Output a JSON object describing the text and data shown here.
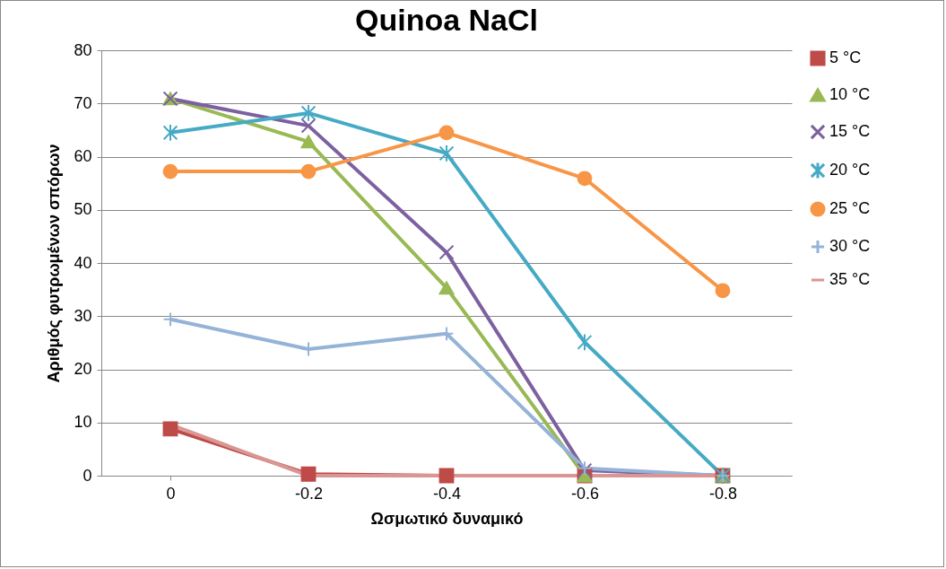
{
  "chart_data": {
    "type": "line",
    "title": "Quinoa NaCl",
    "xlabel": "Ωσμωτικό δυναμικό",
    "ylabel": "Αριθμός φυτρωμένων σπόρων",
    "categories": [
      "0",
      "-0.2",
      "-0.4",
      "-0.6",
      "-0.8"
    ],
    "ylim": [
      0,
      80
    ],
    "yticks": [
      0,
      10,
      20,
      30,
      40,
      50,
      60,
      70,
      80
    ],
    "grid": "y",
    "legend": "right",
    "series": [
      {
        "name": "5 °C",
        "color": "#be4b48",
        "marker": "square",
        "values": [
          8.8,
          0.3,
          0,
          0,
          0
        ]
      },
      {
        "name": "10 °C",
        "color": "#98b954",
        "marker": "triangle",
        "values": [
          70.9,
          62.8,
          35.3,
          0,
          0
        ]
      },
      {
        "name": "15 °C",
        "color": "#7d60a0",
        "marker": "cross",
        "values": [
          70.9,
          65.8,
          42.0,
          1.0,
          0
        ]
      },
      {
        "name": "20 °C",
        "color": "#46aac5",
        "marker": "cross",
        "values": [
          64.5,
          68.2,
          60.6,
          25.1,
          0
        ]
      },
      {
        "name": "25 °C",
        "color": "#f79646",
        "marker": "circle",
        "values": [
          57.2,
          57.2,
          64.5,
          55.9,
          34.8
        ]
      },
      {
        "name": "30 °C",
        "color": "#95b3d7",
        "marker": "cross",
        "values": [
          29.4,
          23.8,
          26.7,
          1.4,
          0
        ]
      },
      {
        "name": "35 °C",
        "color": "#d99694",
        "marker": "none",
        "values": [
          9.6,
          0,
          0,
          0,
          0
        ]
      }
    ]
  }
}
